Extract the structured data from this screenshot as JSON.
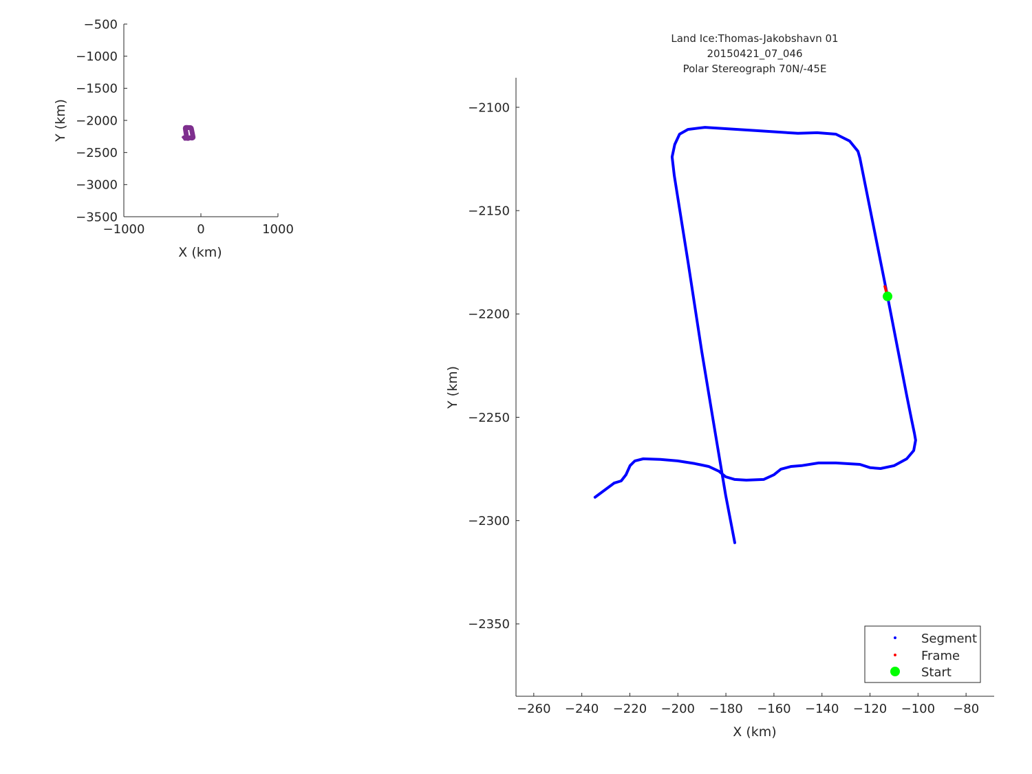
{
  "chart_data": [
    {
      "type": "line",
      "title": "",
      "xlabel": "X (km)",
      "ylabel": "Y (km)",
      "xlim": [
        -1000,
        1000
      ],
      "ylim": [
        -3500,
        -500
      ],
      "xticks": [
        -1000,
        0,
        1000
      ],
      "yticks": [
        -500,
        -1000,
        -1500,
        -2000,
        -2500,
        -3000,
        -3500
      ],
      "grid": false,
      "color": "#7e2f8e",
      "series": [
        {
          "ref": "main_track"
        }
      ]
    },
    {
      "type": "scatter",
      "title_lines": [
        "Land Ice:Thomas-Jakobshavn 01",
        "20150421_07_046",
        "Polar Stereograph 70N/-45E"
      ],
      "xlabel": "X (km)",
      "ylabel": "Y (km)",
      "xlim": [
        -267.4,
        -68.3
      ],
      "ylim": [
        -2385,
        -2085.7
      ],
      "xticks": [
        -260,
        -240,
        -220,
        -200,
        -180,
        -160,
        -140,
        -120,
        -100,
        -80
      ],
      "yticks": [
        -2100,
        -2150,
        -2200,
        -2250,
        -2300,
        -2350
      ],
      "grid": false,
      "legend_position": "bottom-right",
      "series": [
        {
          "name": "Segment",
          "color": "#0000ff",
          "x": [
            -234.5,
            -228.8,
            -226.5,
            -223.6,
            -221.6,
            -219.9,
            -217.9,
            -214.4,
            -207.3,
            -200.1,
            -193.0,
            -187.2,
            -182.9,
            -180.1,
            -176.3,
            -171.5,
            -164.3,
            -160.0,
            -157.1,
            -152.8,
            -148.5,
            -141.4,
            -134.2,
            -124.2,
            -119.9,
            -115.6,
            -109.9,
            -104.7,
            -101.8,
            -101.0,
            -101.5,
            -102.7,
            -104.7,
            -112.7,
            -124.2,
            -125.0,
            -128.5,
            -134.2,
            -142.0,
            -150.0,
            -167.2,
            -188.7,
            -195.8,
            -199.3,
            -201.3,
            -202.4,
            -201.5,
            -195.8,
            -190.1,
            -184.4,
            -180.1,
            -176.3
          ],
          "y": [
            -2288.7,
            -2283.8,
            -2281.8,
            -2280.8,
            -2277.8,
            -2273.4,
            -2271.1,
            -2270.1,
            -2270.4,
            -2271.1,
            -2272.4,
            -2273.8,
            -2276.1,
            -2278.8,
            -2280.1,
            -2280.4,
            -2280.1,
            -2277.8,
            -2275.1,
            -2273.8,
            -2273.4,
            -2272.1,
            -2272.1,
            -2272.8,
            -2274.4,
            -2274.8,
            -2273.4,
            -2270.1,
            -2266.1,
            -2261.1,
            -2257.8,
            -2251.1,
            -2239.5,
            -2191.5,
            -2124.6,
            -2121.3,
            -2116.3,
            -2113.0,
            -2112.3,
            -2112.6,
            -2111.3,
            -2109.7,
            -2110.7,
            -2113.0,
            -2118.0,
            -2124.0,
            -2133.0,
            -2174.6,
            -2217.8,
            -2257.8,
            -2287.7,
            -2310.7
          ]
        },
        {
          "name": "Frame",
          "color": "#ff0000",
          "x": [
            -113.9,
            -112.7
          ],
          "y": [
            -2186.2,
            -2191.5
          ]
        },
        {
          "name": "Start",
          "color": "#00ff00",
          "x": [
            -112.7
          ],
          "y": [
            -2191.5
          ]
        }
      ]
    }
  ]
}
